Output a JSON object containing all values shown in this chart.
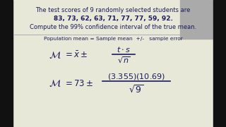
{
  "bg_color": "#e8e8d8",
  "text_color": "#1a1a5e",
  "border_color": "#111111",
  "line1": "The test scores of 9 randomly selected students are",
  "line2": "83, 73, 62, 63, 71, 77, 77, 59, 92.",
  "line3": "Compute the 99% confidence interval of the true mean.",
  "line4": "Population mean = Sample mean  +/-   sample error",
  "figsize": [
    3.2,
    1.8
  ],
  "dpi": 100
}
